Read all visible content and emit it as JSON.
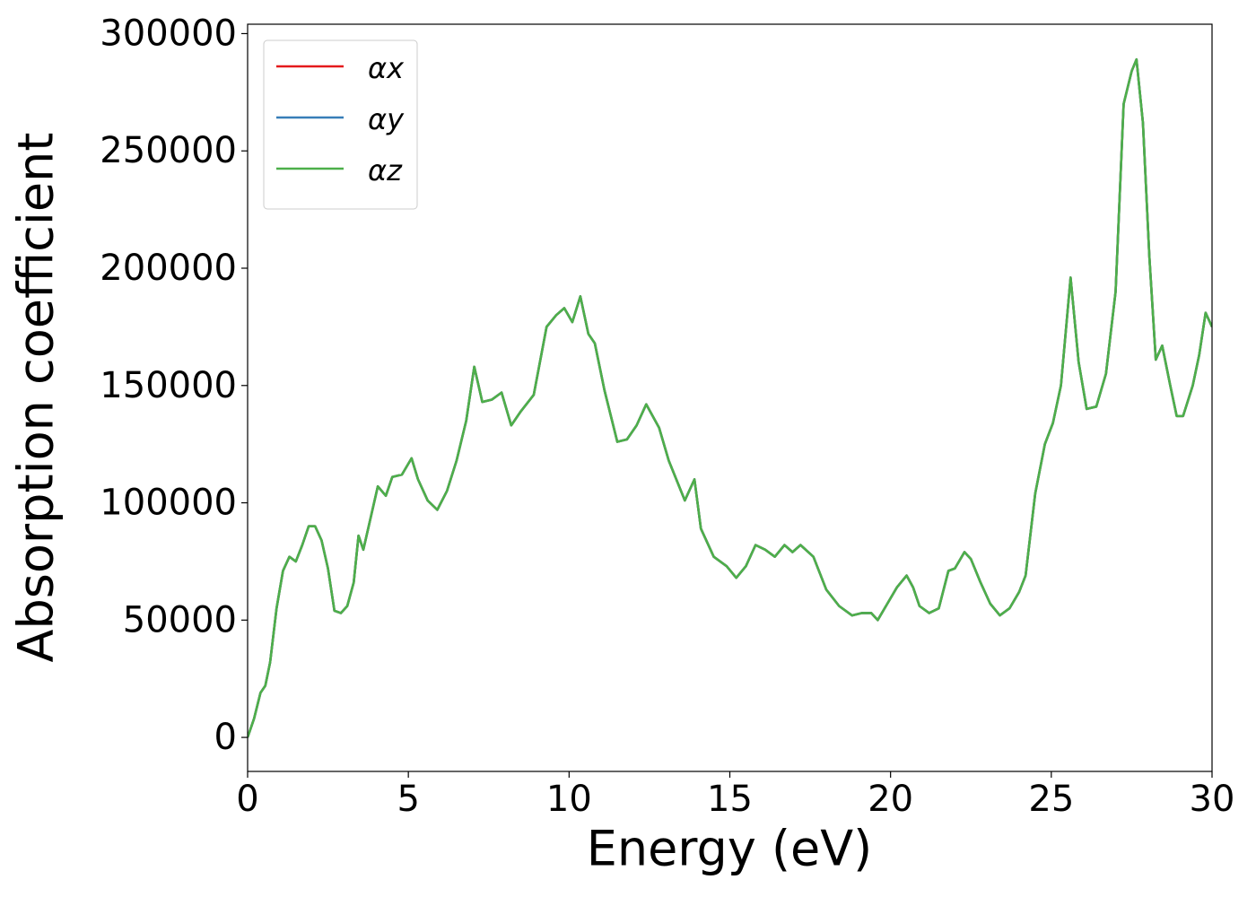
{
  "chart_data": {
    "type": "line",
    "xlabel": "Energy (eV)",
    "ylabel": "Absorption coefficient",
    "x": [
      0,
      0.2,
      0.4,
      0.55,
      0.7,
      0.9,
      1.1,
      1.3,
      1.5,
      1.7,
      1.9,
      2.1,
      2.3,
      2.5,
      2.7,
      2.9,
      3.1,
      3.3,
      3.45,
      3.6,
      3.8,
      4.05,
      4.3,
      4.5,
      4.8,
      5.1,
      5.3,
      5.6,
      5.9,
      6.2,
      6.5,
      6.8,
      7.05,
      7.3,
      7.6,
      7.9,
      8.2,
      8.5,
      8.9,
      9.3,
      9.6,
      9.85,
      10.1,
      10.35,
      10.6,
      10.8,
      11.1,
      11.5,
      11.8,
      12.1,
      12.4,
      12.8,
      13.1,
      13.6,
      13.9,
      14.1,
      14.5,
      14.9,
      15.2,
      15.5,
      15.8,
      16.1,
      16.4,
      16.7,
      16.95,
      17.2,
      17.6,
      18.0,
      18.4,
      18.8,
      19.1,
      19.4,
      19.6,
      19.9,
      20.2,
      20.5,
      20.7,
      20.9,
      21.2,
      21.5,
      21.8,
      22.0,
      22.3,
      22.5,
      22.8,
      23.1,
      23.4,
      23.7,
      24.0,
      24.2,
      24.5,
      24.8,
      25.05,
      25.3,
      25.6,
      25.85,
      26.1,
      26.4,
      26.7,
      27.0,
      27.25,
      27.5,
      27.65,
      27.85,
      28.05,
      28.25,
      28.45,
      28.7,
      28.9,
      29.1,
      29.4,
      29.6,
      29.8,
      30
    ],
    "series": [
      {
        "name": "αx",
        "color": "#e41a1c",
        "values": [
          0,
          8000,
          19000,
          22000,
          32000,
          55000,
          71000,
          77000,
          75000,
          82000,
          90000,
          90000,
          84000,
          72000,
          54000,
          53000,
          56000,
          66000,
          86000,
          80000,
          92000,
          107000,
          103000,
          111000,
          112000,
          119000,
          110000,
          101000,
          97000,
          105000,
          118000,
          135000,
          158000,
          143000,
          144000,
          147000,
          133000,
          139000,
          146000,
          175000,
          180000,
          183000,
          177000,
          188000,
          172000,
          168000,
          148000,
          126000,
          127000,
          133000,
          142000,
          132000,
          118000,
          101000,
          110000,
          89000,
          77000,
          73000,
          68000,
          73000,
          82000,
          80000,
          77000,
          82000,
          79000,
          82000,
          77000,
          63000,
          56000,
          52000,
          53000,
          53000,
          50000,
          57000,
          64000,
          69000,
          64000,
          56000,
          53000,
          55000,
          71000,
          72000,
          79000,
          76000,
          66000,
          57000,
          52000,
          55000,
          62000,
          69000,
          104000,
          125000,
          134000,
          150000,
          196000,
          160000,
          140000,
          141000,
          155000,
          190000,
          270000,
          284000,
          289000,
          262000,
          205000,
          161000,
          167000,
          150000,
          137000,
          137000,
          150000,
          163000,
          181000,
          175000
        ]
      },
      {
        "name": "αy",
        "color": "#377eb8",
        "values": [
          0,
          8000,
          19000,
          22000,
          32000,
          55000,
          71000,
          77000,
          75000,
          82000,
          90000,
          90000,
          84000,
          72000,
          54000,
          53000,
          56000,
          66000,
          86000,
          80000,
          92000,
          107000,
          103000,
          111000,
          112000,
          119000,
          110000,
          101000,
          97000,
          105000,
          118000,
          135000,
          158000,
          143000,
          144000,
          147000,
          133000,
          139000,
          146000,
          175000,
          180000,
          183000,
          177000,
          188000,
          172000,
          168000,
          148000,
          126000,
          127000,
          133000,
          142000,
          132000,
          118000,
          101000,
          110000,
          89000,
          77000,
          73000,
          68000,
          73000,
          82000,
          80000,
          77000,
          82000,
          79000,
          82000,
          77000,
          63000,
          56000,
          52000,
          53000,
          53000,
          50000,
          57000,
          64000,
          69000,
          64000,
          56000,
          53000,
          55000,
          71000,
          72000,
          79000,
          76000,
          66000,
          57000,
          52000,
          55000,
          62000,
          69000,
          104000,
          125000,
          134000,
          150000,
          196000,
          160000,
          140000,
          141000,
          155000,
          190000,
          270000,
          284000,
          289000,
          262000,
          205000,
          161000,
          167000,
          150000,
          137000,
          137000,
          150000,
          163000,
          181000,
          175000
        ]
      },
      {
        "name": "αz",
        "color": "#4daf4a",
        "values": [
          0,
          8000,
          19000,
          22000,
          32000,
          55000,
          71000,
          77000,
          75000,
          82000,
          90000,
          90000,
          84000,
          72000,
          54000,
          53000,
          56000,
          66000,
          86000,
          80000,
          92000,
          107000,
          103000,
          111000,
          112000,
          119000,
          110000,
          101000,
          97000,
          105000,
          118000,
          135000,
          158000,
          143000,
          144000,
          147000,
          133000,
          139000,
          146000,
          175000,
          180000,
          183000,
          177000,
          188000,
          172000,
          168000,
          148000,
          126000,
          127000,
          133000,
          142000,
          132000,
          118000,
          101000,
          110000,
          89000,
          77000,
          73000,
          68000,
          73000,
          82000,
          80000,
          77000,
          82000,
          79000,
          82000,
          77000,
          63000,
          56000,
          52000,
          53000,
          53000,
          50000,
          57000,
          64000,
          69000,
          64000,
          56000,
          53000,
          55000,
          71000,
          72000,
          79000,
          76000,
          66000,
          57000,
          52000,
          55000,
          62000,
          69000,
          104000,
          125000,
          134000,
          150000,
          196000,
          160000,
          140000,
          141000,
          155000,
          190000,
          270000,
          284000,
          289000,
          262000,
          205000,
          161000,
          167000,
          150000,
          137000,
          137000,
          150000,
          163000,
          181000,
          175000
        ]
      }
    ],
    "xlim": [
      0,
      30
    ],
    "xticks": [
      0,
      5,
      10,
      15,
      20,
      25,
      30
    ],
    "ylim": [
      -14500,
      304000
    ],
    "yticks": [
      0,
      50000,
      100000,
      150000,
      200000,
      250000,
      300000
    ],
    "grid": false,
    "legend": "upper left"
  }
}
